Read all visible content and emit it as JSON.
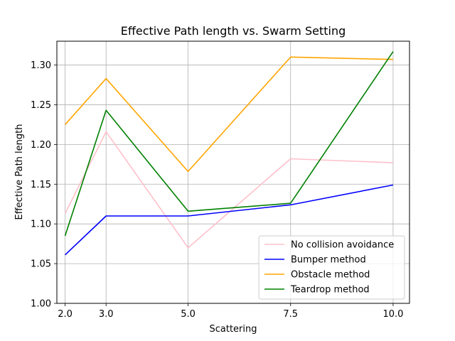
{
  "chart_data": {
    "type": "line",
    "title": "Effective Path length vs. Swarm Setting",
    "xlabel": "Scattering",
    "ylabel": "Effective Path length",
    "x": [
      2.0,
      3.0,
      5.0,
      7.5,
      10.0
    ],
    "x_tick_labels": [
      "2.0",
      "3.0",
      "5.0",
      "7.5",
      "10.0"
    ],
    "xlim": [
      1.8,
      10.4
    ],
    "ylim": [
      1.0,
      1.33
    ],
    "y_ticks": [
      1.0,
      1.05,
      1.1,
      1.15,
      1.2,
      1.25,
      1.3
    ],
    "y_tick_labels": [
      "1.00",
      "1.05",
      "1.10",
      "1.15",
      "1.20",
      "1.25",
      "1.30"
    ],
    "grid": true,
    "legend_position": "lower-right",
    "series": [
      {
        "name": "No collision avoidance",
        "color": "#ffc0cb",
        "values": [
          1.113,
          1.216,
          1.07,
          1.182,
          1.177
        ]
      },
      {
        "name": "Bumper method",
        "color": "#0000ff",
        "values": [
          1.061,
          1.11,
          1.11,
          1.124,
          1.149
        ]
      },
      {
        "name": "Obstacle method",
        "color": "#ffa500",
        "values": [
          1.225,
          1.283,
          1.166,
          1.31,
          1.307
        ]
      },
      {
        "name": "Teardrop method",
        "color": "#008000",
        "values": [
          1.085,
          1.243,
          1.116,
          1.126,
          1.317
        ]
      }
    ]
  }
}
